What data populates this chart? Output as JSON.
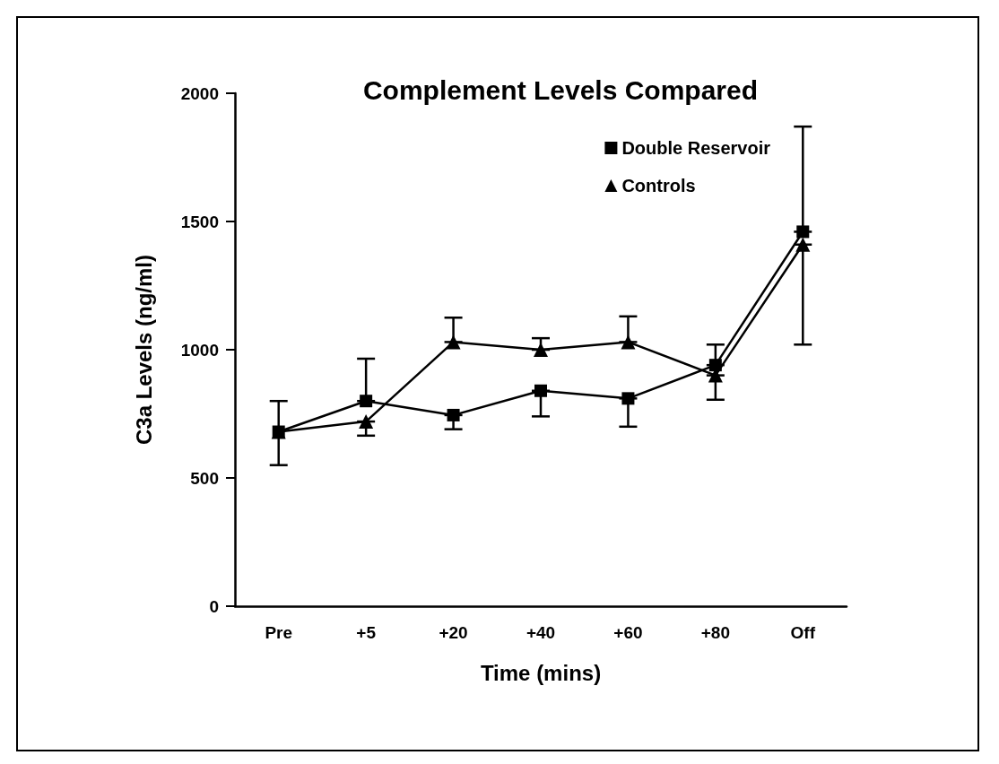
{
  "chart_data": {
    "type": "line",
    "title": "Complement Levels Compared",
    "xlabel": "Time (mins)",
    "ylabel": "C3a Levels (ng/ml)",
    "categories": [
      "Pre",
      "+5",
      "+20",
      "+40",
      "+60",
      "+80",
      "Off"
    ],
    "series": [
      {
        "name": "Double Reservoir",
        "color": "#000000",
        "marker": "square",
        "values": [
          680,
          800,
          745,
          840,
          810,
          940,
          1460
        ],
        "errors": [
          [
            550,
            800
          ],
          [
            800,
            965
          ],
          [
            690,
            745
          ],
          [
            740,
            840
          ],
          [
            700,
            810
          ],
          [
            940,
            1020
          ],
          [
            1460,
            1870
          ]
        ]
      },
      {
        "name": "Controls",
        "color": "#000000",
        "marker": "triangle",
        "values": [
          680,
          720,
          1030,
          1000,
          1030,
          900,
          1410
        ],
        "errors": [
          null,
          [
            665,
            720
          ],
          [
            1030,
            1125
          ],
          [
            1000,
            1045
          ],
          [
            1030,
            1130
          ],
          [
            805,
            900
          ],
          [
            1020,
            1410
          ]
        ]
      }
    ],
    "ylim": [
      0,
      2000
    ],
    "yticks": [
      0,
      500,
      1000,
      1500,
      2000
    ],
    "grid": false,
    "legend": "top right",
    "line_style": "solid"
  }
}
